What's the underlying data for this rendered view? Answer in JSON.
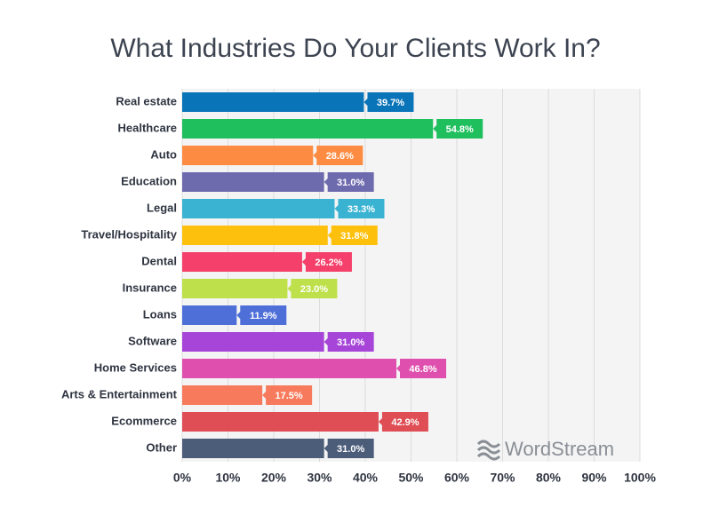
{
  "chart_data": {
    "type": "bar",
    "orientation": "horizontal",
    "title": "What Industries Do Your Clients Work In?",
    "categories": [
      "Real estate",
      "Healthcare",
      "Auto",
      "Education",
      "Legal",
      "Travel/Hospitality",
      "Dental",
      "Insurance",
      "Loans",
      "Software",
      "Home Services",
      "Arts & Entertainment",
      "Ecommerce",
      "Other"
    ],
    "values": [
      39.7,
      54.8,
      28.6,
      31.0,
      33.3,
      31.8,
      26.2,
      23.0,
      11.9,
      31.0,
      46.8,
      17.5,
      42.9,
      31.0
    ],
    "value_labels": [
      "39.7%",
      "54.8%",
      "28.6%",
      "31.0%",
      "33.3%",
      "31.8%",
      "26.2%",
      "23.0%",
      "11.9%",
      "31.0%",
      "46.8%",
      "17.5%",
      "42.9%",
      "31.0%"
    ],
    "colors": [
      "#0a74b9",
      "#1fbf5e",
      "#fd8c42",
      "#6e6aae",
      "#3ab3d3",
      "#fdc00c",
      "#f4406a",
      "#bee04a",
      "#4f6fd8",
      "#a645d8",
      "#de4fae",
      "#f77a5c",
      "#df4d55",
      "#4c5d7a"
    ],
    "xlim": [
      0,
      100
    ],
    "xticks": [
      {
        "value": 0,
        "label": "0%"
      },
      {
        "value": 10,
        "label": "10%"
      },
      {
        "value": 20,
        "label": "20%"
      },
      {
        "value": 30,
        "label": "30%"
      },
      {
        "value": 40,
        "label": "40%"
      },
      {
        "value": 50,
        "label": "50%"
      },
      {
        "value": 60,
        "label": "60%"
      },
      {
        "value": 70,
        "label": "70%"
      },
      {
        "value": 80,
        "label": "80%"
      },
      {
        "value": 90,
        "label": "90%"
      },
      {
        "value": 100,
        "label": "100%"
      }
    ],
    "grid": true,
    "watermark": "WordStream"
  }
}
